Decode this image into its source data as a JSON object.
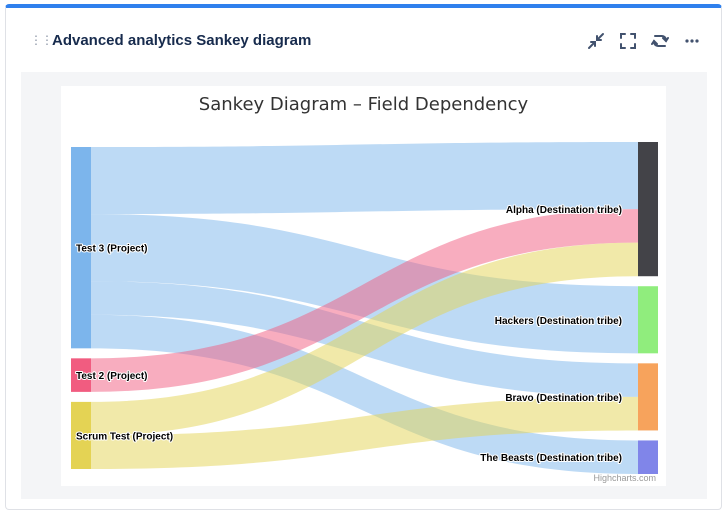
{
  "widget": {
    "title": "Advanced analytics Sankey diagram",
    "actions": [
      {
        "icon": "collapse-icon",
        "name": "collapse-button"
      },
      {
        "icon": "fullscreen-icon",
        "name": "fullscreen-button"
      },
      {
        "icon": "refresh-icon",
        "name": "refresh-button"
      },
      {
        "icon": "more-icon",
        "name": "more-button"
      }
    ]
  },
  "chart": {
    "title": "Sankey Diagram – Field Dependency",
    "credits": "Highcharts.com"
  },
  "chart_data": {
    "type": "sankey",
    "title": "Sankey Diagram – Field Dependency",
    "nodes": [
      {
        "id": "test3",
        "label": "Test 3 (Project)",
        "color": "#7cb5ec",
        "column": 0
      },
      {
        "id": "test2",
        "label": "Test 2 (Project)",
        "color": "#f15c80",
        "column": 0
      },
      {
        "id": "scrum",
        "label": "Scrum Test (Project)",
        "color": "#e4d354",
        "column": 0
      },
      {
        "id": "alpha",
        "label": "Alpha (Destination tribe)",
        "color": "#434348",
        "column": 1
      },
      {
        "id": "hackers",
        "label": "Hackers (Destination tribe)",
        "color": "#90ed7d",
        "column": 1
      },
      {
        "id": "bravo",
        "label": "Bravo (Destination tribe)",
        "color": "#f7a35c",
        "column": 1
      },
      {
        "id": "beasts",
        "label": "The Beasts (Destination tribe)",
        "color": "#8085e9",
        "column": 1
      }
    ],
    "links": [
      {
        "from": "test3",
        "to": "alpha",
        "value": 10
      },
      {
        "from": "test3",
        "to": "hackers",
        "value": 10
      },
      {
        "from": "test3",
        "to": "bravo",
        "value": 5
      },
      {
        "from": "test3",
        "to": "beasts",
        "value": 5
      },
      {
        "from": "test2",
        "to": "alpha",
        "value": 5
      },
      {
        "from": "scrum",
        "to": "alpha",
        "value": 5
      },
      {
        "from": "scrum",
        "to": "bravo",
        "value": 5
      }
    ]
  }
}
